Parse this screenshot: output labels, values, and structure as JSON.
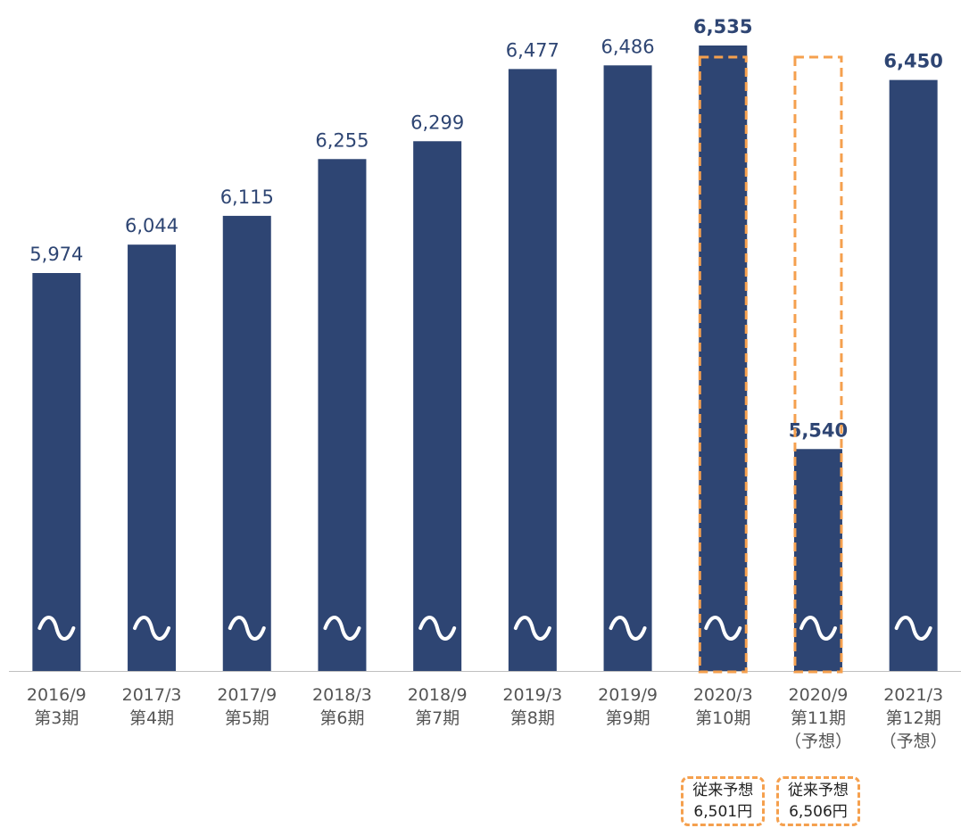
{
  "colors": {
    "bar": "#2E4573",
    "highlight_border": "#F5A04E",
    "tick_text": "#555555",
    "value_text": "#2E4573",
    "break_mark": "#ffffff"
  },
  "chart_data": {
    "type": "bar",
    "title": "",
    "xlabel": "",
    "ylabel": "",
    "y_axis_break": true,
    "ylim": [
      5000,
      6600
    ],
    "grid": false,
    "legend": "none",
    "categories": [
      [
        "2016/9",
        "第3期"
      ],
      [
        "2017/3",
        "第4期"
      ],
      [
        "2017/9",
        "第5期"
      ],
      [
        "2018/3",
        "第6期"
      ],
      [
        "2018/9",
        "第7期"
      ],
      [
        "2019/3",
        "第8期"
      ],
      [
        "2019/9",
        "第9期"
      ],
      [
        "2020/3",
        "第10期"
      ],
      [
        "2020/9",
        "第11期",
        "（予想）"
      ],
      [
        "2021/3",
        "第12期",
        "（予想）"
      ]
    ],
    "values": [
      5974,
      6044,
      6115,
      6255,
      6299,
      6477,
      6486,
      6535,
      5540,
      6450
    ],
    "data_labels": [
      "5,974",
      "6,044",
      "6,115",
      "6,255",
      "6,299",
      "6,477",
      "6,486",
      "6,535",
      "5,540",
      "6,450"
    ],
    "bold_labels": [
      false,
      false,
      false,
      false,
      false,
      false,
      false,
      true,
      true,
      true
    ],
    "highlighted": [
      7,
      8
    ],
    "annotations": [
      {
        "category_index": 7,
        "lines": [
          "従来予想",
          "6,501円"
        ]
      },
      {
        "category_index": 8,
        "lines": [
          "従来予想",
          "6,506円"
        ]
      }
    ]
  }
}
